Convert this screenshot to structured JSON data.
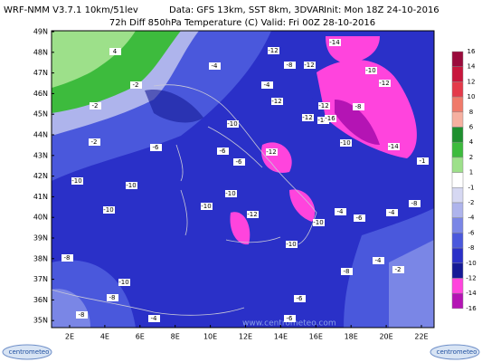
{
  "header": {
    "model": "WRF-NMM V3.7.1 10km/51lev",
    "data": "Data: GFS 13km, SST 8km, 3DVAR",
    "init": "Init: Mon 18Z 24-10-2016"
  },
  "title": "72h Diff 850hPa Temperature (C)  Valid: Fri 00Z 28-10-2016",
  "lat_labels": [
    "49N",
    "48N",
    "47N",
    "46N",
    "45N",
    "44N",
    "43N",
    "42N",
    "41N",
    "40N",
    "39N",
    "38N",
    "37N",
    "36N",
    "35N"
  ],
  "lon_labels": [
    "2E",
    "4E",
    "6E",
    "8E",
    "10E",
    "12E",
    "14E",
    "16E",
    "18E",
    "20E",
    "22E"
  ],
  "colorbar": {
    "labels": [
      "16",
      "14",
      "12",
      "10",
      "8",
      "6",
      "4",
      "2",
      "1",
      "-1",
      "-2",
      "-4",
      "-6",
      "-8",
      "-10",
      "-12",
      "-14",
      "-16"
    ],
    "colors": [
      "#9a0b3c",
      "#c8163c",
      "#e43a4a",
      "#f07a6a",
      "#f6b0a0",
      "#1f8f2f",
      "#3dbb3d",
      "#9de08a",
      "#ffffff",
      "#d6d8f2",
      "#aeb4ec",
      "#7a86e6",
      "#4a58dc",
      "#2a30c8",
      "#151a96",
      "#ff44dd",
      "#b414b4"
    ]
  },
  "contour_labels": [
    "4",
    "-14",
    "-4",
    "-12",
    "-8",
    "-12",
    "-10",
    "-2",
    "-12",
    "-2",
    "-4",
    "-12",
    "-8",
    "-10",
    "-12",
    "-14",
    "-16",
    "-12",
    "-14",
    "-2",
    "-6",
    "-6",
    "-6",
    "-10",
    "-12",
    "-10",
    "-10",
    "-10",
    "-4",
    "-8",
    "-10",
    "-10",
    "-12",
    "-10",
    "-4",
    "-6",
    "-8",
    "-10",
    "-4",
    "-10",
    "-8",
    "-8",
    "-6",
    "-2",
    "-8",
    "-4",
    "-6",
    "-1"
  ],
  "watermark": "www.centrometeo.com",
  "logo": "centrometeo"
}
